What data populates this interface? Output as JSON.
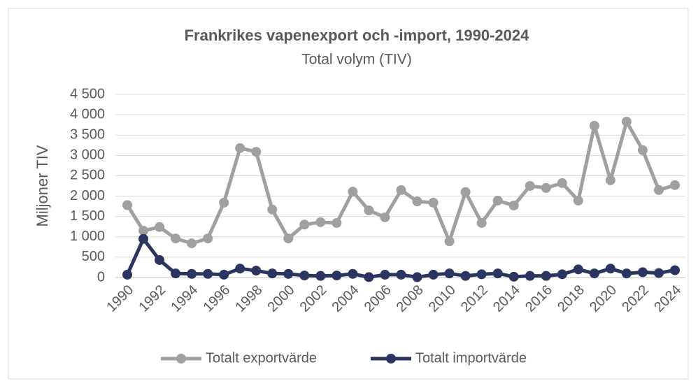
{
  "chart_data": {
    "type": "line",
    "title": "Frankrikes vapenexport och -import, 1990-2024",
    "subtitle": "Total volym (TIV)",
    "y_label": "Miljoner TIV",
    "categories": [
      "1990",
      null,
      "1992",
      null,
      "1994",
      null,
      "1996",
      null,
      "1998",
      null,
      "2000",
      null,
      "2002",
      null,
      "2004",
      null,
      "2006",
      null,
      "2008",
      null,
      "2010",
      null,
      "2012",
      null,
      "2014",
      null,
      "2016",
      null,
      "2018",
      null,
      "2020",
      null,
      "2022",
      null,
      "2024"
    ],
    "series": [
      {
        "name": "Totalt exportvärde",
        "color": "#a0a0a0",
        "values": [
          1780,
          1150,
          1240,
          960,
          840,
          960,
          1840,
          3180,
          3090,
          1670,
          960,
          1300,
          1360,
          1340,
          2110,
          1650,
          1480,
          2150,
          1870,
          1840,
          890,
          2100,
          1340,
          1890,
          1770,
          2250,
          2200,
          2320,
          1890,
          3730,
          2390,
          3830,
          3130,
          2150,
          2270
        ]
      },
      {
        "name": "Totalt importvärde",
        "color": "#2b3560",
        "values": [
          70,
          950,
          430,
          100,
          90,
          90,
          70,
          220,
          170,
          100,
          90,
          50,
          40,
          50,
          90,
          10,
          70,
          70,
          10,
          70,
          100,
          40,
          80,
          100,
          20,
          40,
          40,
          80,
          200,
          100,
          220,
          100,
          130,
          110,
          180
        ]
      }
    ],
    "ylim": [
      0,
      4500
    ],
    "yticks": [
      0,
      500,
      {
        "value": 1000,
        "label": "1 000"
      },
      {
        "value": 1500,
        "label": "1 500"
      },
      {
        "value": 2000,
        "label": "2 000"
      },
      {
        "value": 2500,
        "label": "2 500"
      },
      {
        "value": 3000,
        "label": "3 000"
      },
      {
        "value": 3500,
        "label": "3 500"
      },
      {
        "value": 4000,
        "label": "4 000"
      },
      {
        "value": 4500,
        "label": "4 500"
      }
    ],
    "grid": true,
    "legend": "bottom"
  }
}
